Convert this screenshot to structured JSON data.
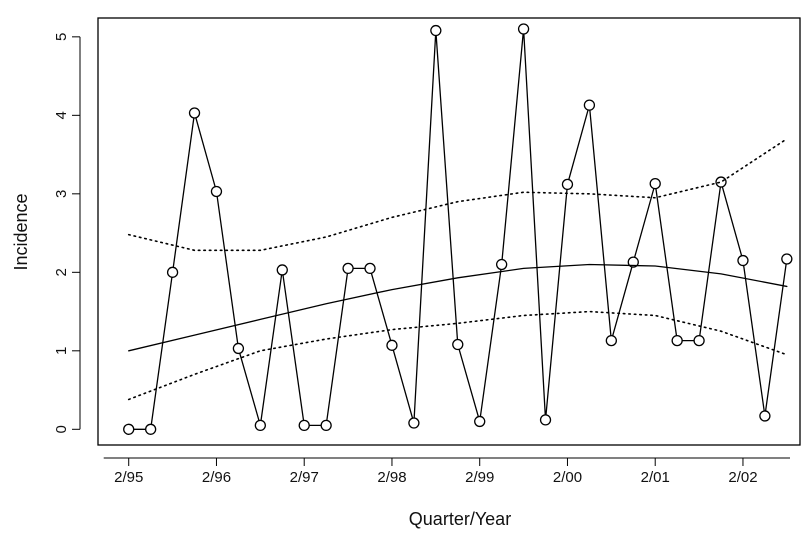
{
  "chart_data": {
    "type": "line",
    "x_label": "Quarter/Year",
    "y_label": "Incidence",
    "series": [
      {
        "color": "#000000",
        "style": "solid",
        "markers": true,
        "x": [
          0,
          1,
          2,
          3,
          4,
          5,
          6,
          7,
          8,
          9,
          10,
          11,
          12,
          13,
          14,
          15,
          16,
          17,
          18,
          19,
          20,
          21,
          22,
          23,
          24,
          25,
          26,
          27,
          28,
          29,
          30
        ],
        "values": [
          0,
          0,
          2,
          4.03,
          3.03,
          1.03,
          0.05,
          2.03,
          0.05,
          0.05,
          2.05,
          2.05,
          1.07,
          0.08,
          5.08,
          1.08,
          0.1,
          2.1,
          5.1,
          0.12,
          3.12,
          4.13,
          1.13,
          2.13,
          3.13,
          1.13,
          1.13,
          3.15,
          2.15,
          0.17,
          2.17
        ]
      },
      {
        "color": "#000000",
        "style": "solid",
        "markers": false,
        "x": [
          0,
          3,
          6,
          9,
          12,
          15,
          18,
          21,
          24,
          27,
          30
        ],
        "values": [
          1.0,
          1.2,
          1.4,
          1.6,
          1.78,
          1.93,
          2.05,
          2.1,
          2.08,
          1.98,
          1.82
        ]
      },
      {
        "color": "#000000",
        "style": "dotted",
        "markers": false,
        "x": [
          0,
          3,
          6,
          9,
          12,
          15,
          18,
          21,
          24,
          27,
          30
        ],
        "values": [
          2.48,
          2.28,
          2.28,
          2.45,
          2.7,
          2.9,
          3.02,
          3.0,
          2.95,
          3.15,
          3.7
        ]
      },
      {
        "color": "#000000",
        "style": "dotted",
        "markers": false,
        "x": [
          0,
          3,
          6,
          9,
          12,
          15,
          18,
          21,
          24,
          27,
          30
        ],
        "values": [
          0.38,
          0.7,
          1.0,
          1.15,
          1.27,
          1.35,
          1.45,
          1.5,
          1.45,
          1.25,
          0.95
        ]
      }
    ],
    "xlim": [
      -1.4,
      30.6
    ],
    "ylim": [
      -0.2,
      5.24
    ],
    "xticks": [
      {
        "value": 0,
        "label": "2/95"
      },
      {
        "value": 4,
        "label": "2/96"
      },
      {
        "value": 8,
        "label": "2/97"
      },
      {
        "value": 12,
        "label": "2/98"
      },
      {
        "value": 16,
        "label": "2/99"
      },
      {
        "value": 20,
        "label": "2/00"
      },
      {
        "value": 24,
        "label": "2/01"
      },
      {
        "value": 28,
        "label": "2/02"
      }
    ],
    "yticks": [
      0,
      1,
      2,
      3,
      4,
      5
    ]
  }
}
